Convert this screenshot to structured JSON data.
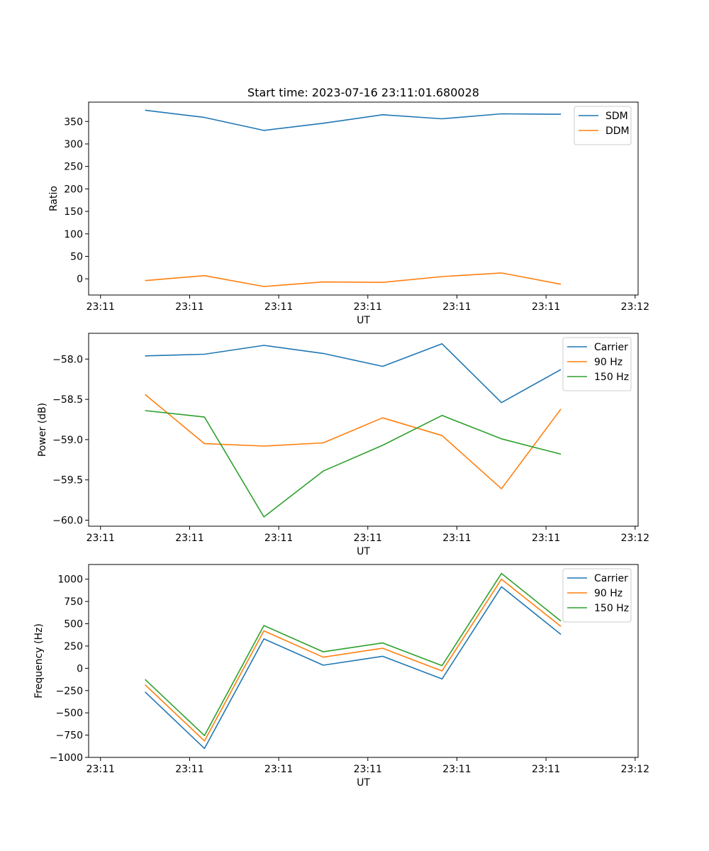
{
  "title": "Start time: 2023-07-16 23:11:01.680028",
  "chart_data": [
    {
      "type": "line",
      "ylabel": "Ratio",
      "xlabel": "UT",
      "ylim": [
        -36,
        393
      ],
      "yticks": [
        0,
        50,
        100,
        150,
        200,
        250,
        300,
        350
      ],
      "xlim": [
        -0.2,
        9.05
      ],
      "xticks": [
        0,
        1.5,
        3,
        4.5,
        6,
        7.5,
        9
      ],
      "xtick_labels": [
        "23:11",
        "23:11",
        "23:11",
        "23:11",
        "23:11",
        "23:11",
        "23:12"
      ],
      "x": [
        0.75,
        1.75,
        2.75,
        3.75,
        4.75,
        5.75,
        6.75,
        7.75
      ],
      "legend": "top-right",
      "series": [
        {
          "name": "SDM",
          "color": "#1f77b4",
          "values": [
            375,
            359,
            330,
            346,
            365,
            356,
            367,
            366
          ]
        },
        {
          "name": "DDM",
          "color": "#ff7f0e",
          "values": [
            -4,
            7,
            -17,
            -7,
            -8,
            5,
            13,
            -12
          ]
        }
      ]
    },
    {
      "type": "line",
      "ylabel": "Power (dB)",
      "xlabel": "UT",
      "ylim": [
        -60.075,
        -57.68
      ],
      "yticks": [
        -60.0,
        -59.5,
        -59.0,
        -58.5,
        -58.0
      ],
      "ytick_labels": [
        "−60.0",
        "−59.5",
        "−59.0",
        "−58.5",
        "−58.0"
      ],
      "xlim": [
        -0.2,
        9.05
      ],
      "xticks": [
        0,
        1.5,
        3,
        4.5,
        6,
        7.5,
        9
      ],
      "xtick_labels": [
        "23:11",
        "23:11",
        "23:11",
        "23:11",
        "23:11",
        "23:11",
        "23:12"
      ],
      "x": [
        0.75,
        1.75,
        2.75,
        3.75,
        4.75,
        5.75,
        6.75,
        7.75
      ],
      "legend": "top-right",
      "series": [
        {
          "name": "Carrier",
          "color": "#1f77b4",
          "values": [
            -57.96,
            -57.94,
            -57.83,
            -57.93,
            -58.09,
            -57.81,
            -58.54,
            -58.13
          ]
        },
        {
          "name": "90 Hz",
          "color": "#ff7f0e",
          "values": [
            -58.44,
            -59.05,
            -59.08,
            -59.04,
            -58.73,
            -58.95,
            -59.61,
            -58.62
          ]
        },
        {
          "name": "150 Hz",
          "color": "#2ca02c",
          "values": [
            -58.64,
            -58.72,
            -59.96,
            -59.39,
            -59.07,
            -58.7,
            -58.99,
            -59.18
          ]
        }
      ]
    },
    {
      "type": "line",
      "ylabel": "Frequency (Hz)",
      "xlabel": "UT",
      "ylim": [
        -1000,
        1165
      ],
      "yticks": [
        -1000,
        -750,
        -500,
        -250,
        0,
        250,
        500,
        750,
        1000
      ],
      "ytick_labels": [
        "−1000",
        "−750",
        "−500",
        "−250",
        "0",
        "250",
        "500",
        "750",
        "1000"
      ],
      "xlim": [
        -0.2,
        9.05
      ],
      "xticks": [
        0,
        1.5,
        3,
        4.5,
        6,
        7.5,
        9
      ],
      "xtick_labels": [
        "23:11",
        "23:11",
        "23:11",
        "23:11",
        "23:11",
        "23:11",
        "23:12"
      ],
      "x": [
        0.75,
        1.75,
        2.75,
        3.75,
        4.75,
        5.75,
        6.75,
        7.75
      ],
      "legend": "top-right",
      "series": [
        {
          "name": "Carrier",
          "color": "#1f77b4",
          "values": [
            -265,
            -900,
            330,
            35,
            135,
            -120,
            915,
            380
          ]
        },
        {
          "name": "90 Hz",
          "color": "#ff7f0e",
          "values": [
            -185,
            -815,
            420,
            125,
            225,
            -30,
            1000,
            470
          ]
        },
        {
          "name": "150 Hz",
          "color": "#2ca02c",
          "values": [
            -125,
            -755,
            480,
            185,
            285,
            30,
            1065,
            530
          ]
        }
      ]
    }
  ]
}
